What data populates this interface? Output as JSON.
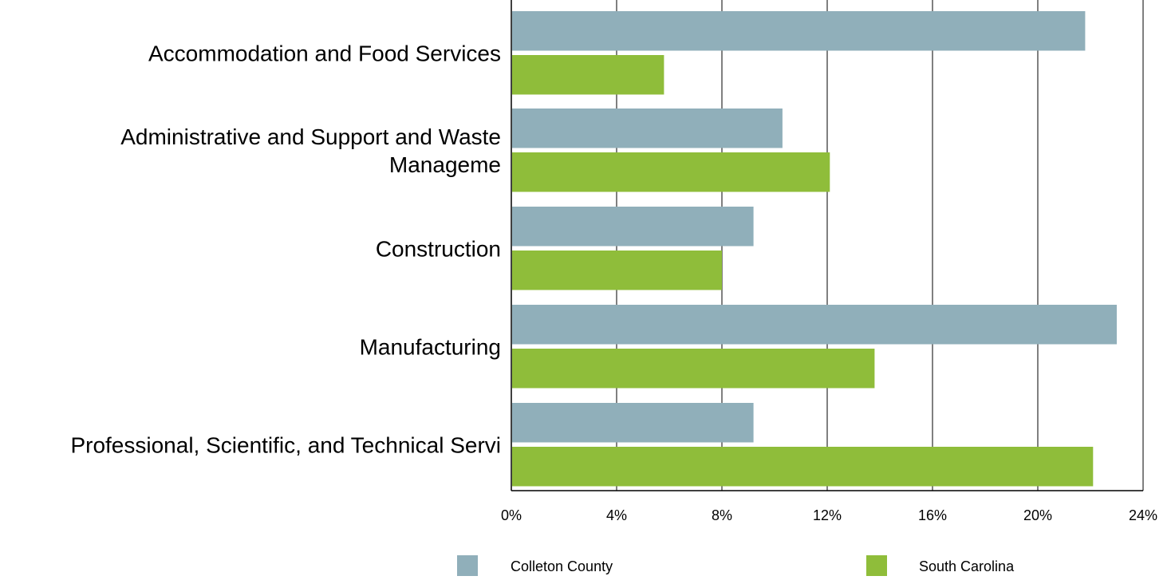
{
  "chart_data": {
    "type": "bar",
    "orientation": "horizontal",
    "categories": [
      [
        "Accommodation and Food Services"
      ],
      [
        "Administrative and Support and Waste",
        "Manageme"
      ],
      [
        "Construction"
      ],
      [
        "Manufacturing"
      ],
      [
        "Professional, Scientific, and Technical Servi"
      ]
    ],
    "series": [
      {
        "name": "Colleton County",
        "color": "#90afba",
        "values": [
          21.8,
          10.3,
          9.2,
          23.0,
          9.2
        ]
      },
      {
        "name": "South Carolina",
        "color": "#8fbd3a",
        "values": [
          5.8,
          12.1,
          8.0,
          13.8,
          22.1
        ]
      }
    ],
    "xlim": [
      0,
      24
    ],
    "xticks": [
      0,
      4,
      8,
      12,
      16,
      20,
      24
    ],
    "tick_suffix": "%",
    "grid": true,
    "legend": "bottom"
  }
}
